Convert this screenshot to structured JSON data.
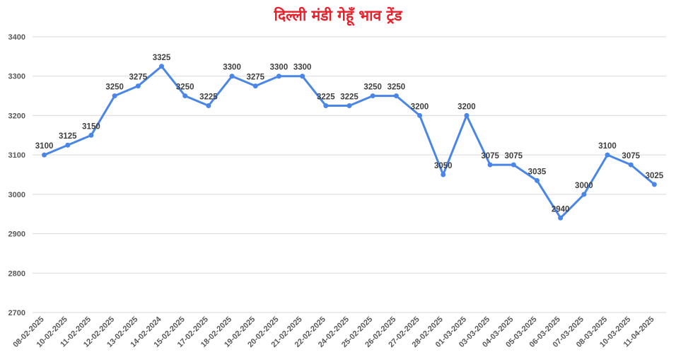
{
  "chart_data": {
    "type": "line",
    "title": "दिल्ली मंडी गेहूँ भाव ट्रेंड",
    "xlabel": "",
    "ylabel": "",
    "ylim": [
      2700,
      3400
    ],
    "yticks": [
      2700,
      2800,
      2900,
      3000,
      3100,
      3200,
      3300,
      3400
    ],
    "grid": true,
    "line_color": "#4a86e8",
    "title_color": "#e8202a",
    "categories": [
      "08-02-2025",
      "10-02-2025",
      "11-02-2025",
      "12-02-2025",
      "13-02-2025",
      "14-02-2024",
      "15-02-2025",
      "17-02-2025",
      "18-02-2025",
      "19-02-2025",
      "20-02-2025",
      "21-02-2025",
      "22-02-2025",
      "24-02-2025",
      "25-02-2025",
      "26-02-2025",
      "27-02-2025",
      "28-02-2025",
      "01-03-2025",
      "03-03-2025",
      "04-03-2025",
      "05-03-2025",
      "06-03-2025",
      "07-03-2025",
      "08-03-2025",
      "10-03-2025",
      "11-04-2025"
    ],
    "values": [
      3100,
      3125,
      3150,
      3250,
      3275,
      3325,
      3250,
      3225,
      3300,
      3275,
      3300,
      3300,
      3225,
      3225,
      3250,
      3250,
      3200,
      3050,
      3200,
      3075,
      3075,
      3035,
      2940,
      3000,
      3100,
      3075,
      3025
    ]
  }
}
